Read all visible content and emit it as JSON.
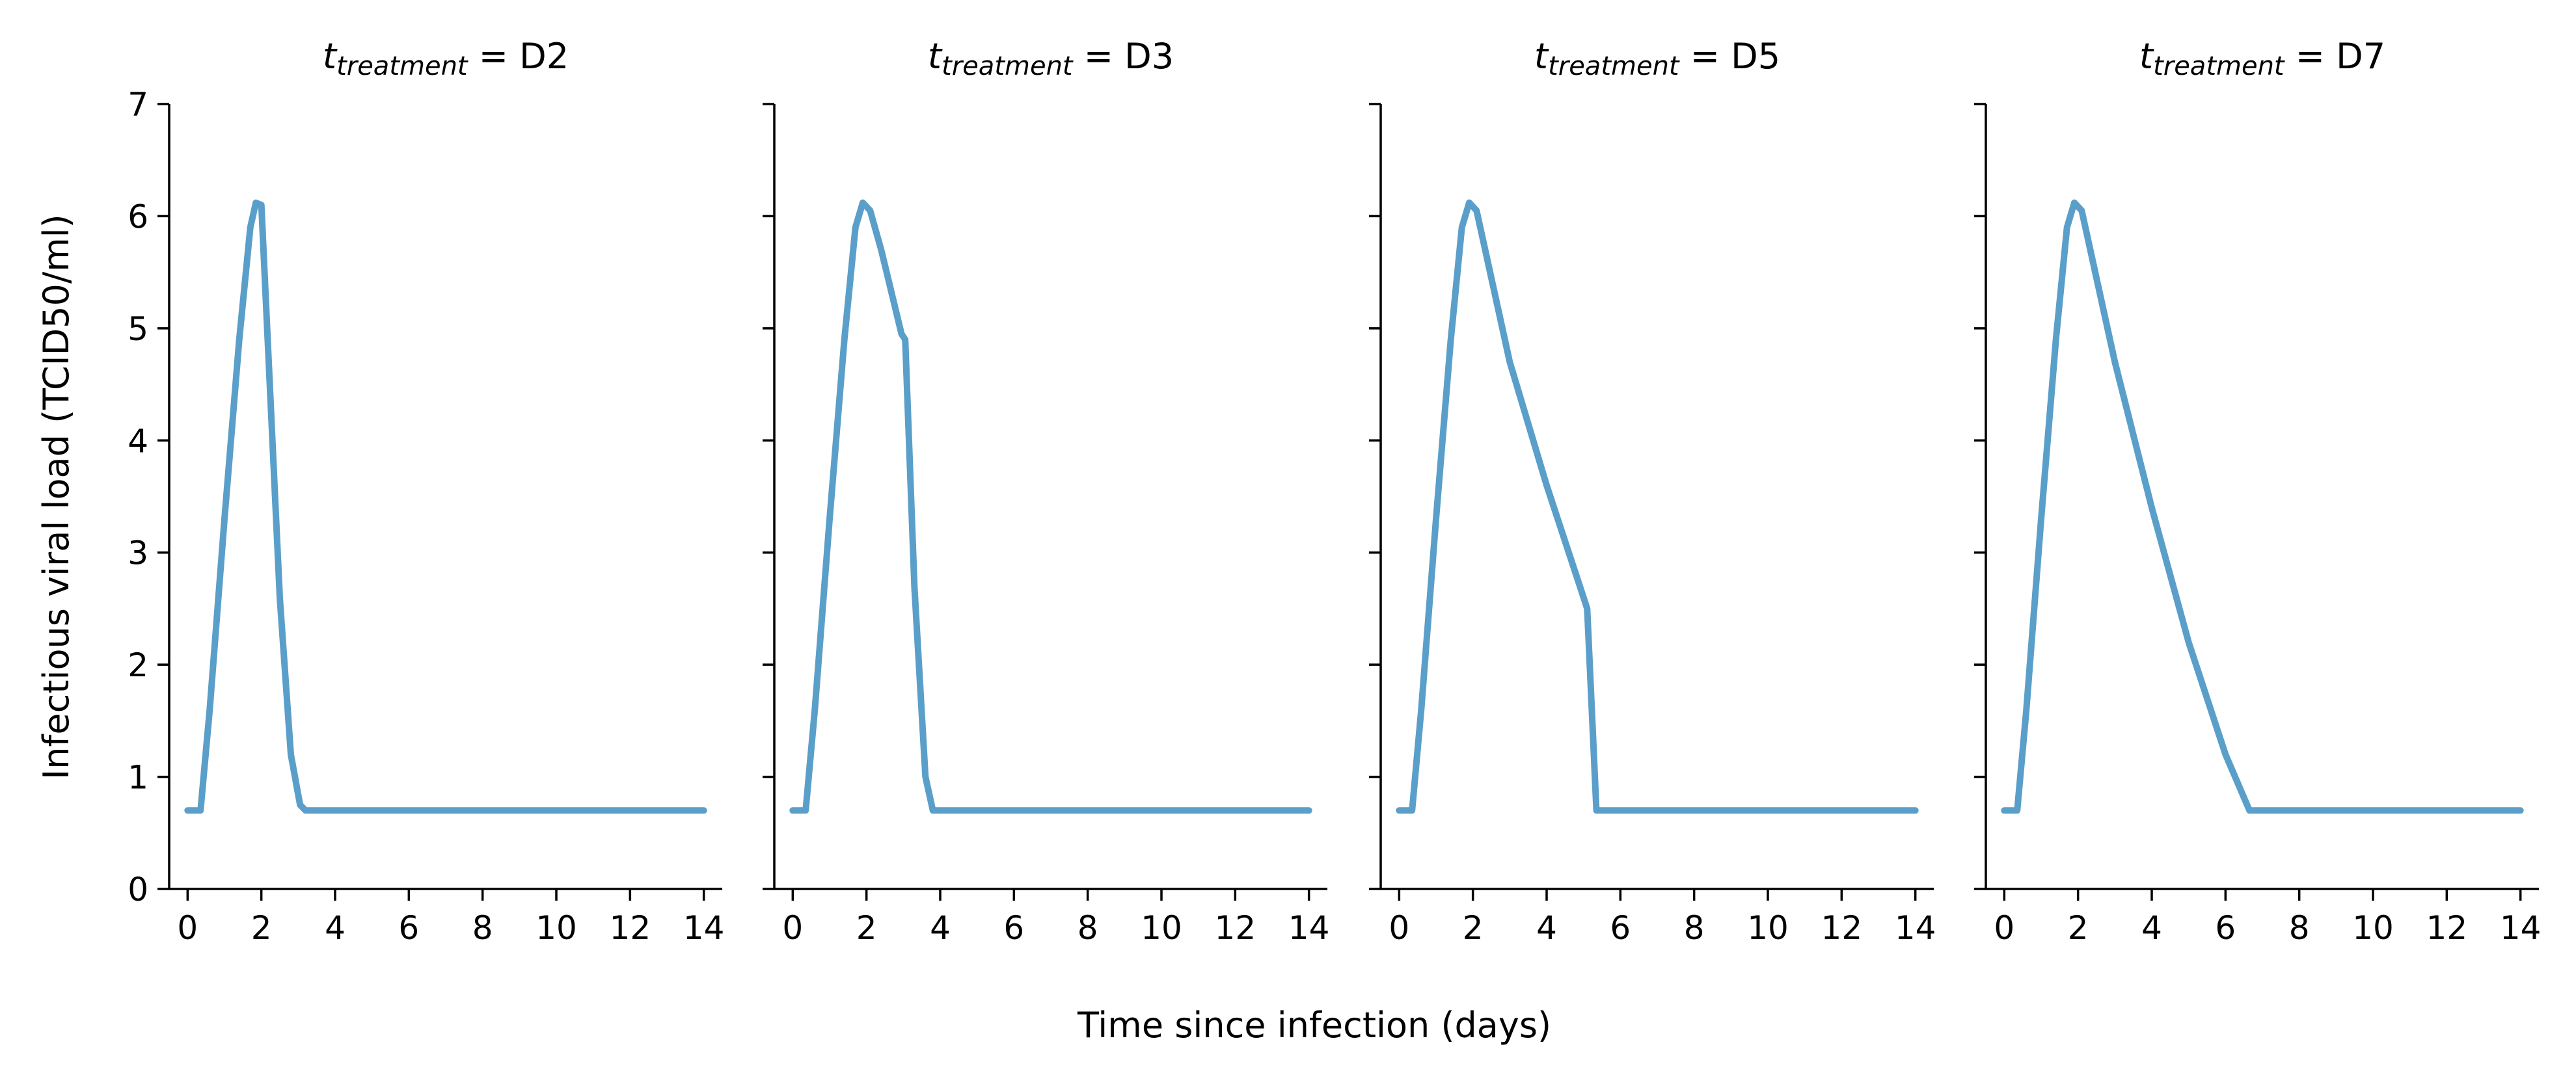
{
  "chart_data": {
    "type": "line",
    "xlabel": "Time since infection (days)",
    "ylabel": "Infectious viral load (TCID50/ml)",
    "xlim": [
      -0.5,
      14.5
    ],
    "ylim": [
      0,
      7
    ],
    "xticks": [
      "0",
      "2",
      "4",
      "6",
      "8",
      "10",
      "12",
      "14"
    ],
    "yticks": [
      "0",
      "1",
      "2",
      "3",
      "4",
      "5",
      "6",
      "7"
    ],
    "line_color": "#5a9fc9",
    "title_prefix": "t",
    "title_subscript": "treatment",
    "panels": [
      {
        "title_value": "D2",
        "series": [
          {
            "x": 0,
            "y": 0.7
          },
          {
            "x": 0.35,
            "y": 0.7
          },
          {
            "x": 0.6,
            "y": 1.6
          },
          {
            "x": 1.0,
            "y": 3.3
          },
          {
            "x": 1.4,
            "y": 4.9
          },
          {
            "x": 1.7,
            "y": 5.9
          },
          {
            "x": 1.85,
            "y": 6.12
          },
          {
            "x": 2.0,
            "y": 6.1
          },
          {
            "x": 2.2,
            "y": 4.7
          },
          {
            "x": 2.5,
            "y": 2.6
          },
          {
            "x": 2.8,
            "y": 1.2
          },
          {
            "x": 3.05,
            "y": 0.75
          },
          {
            "x": 3.2,
            "y": 0.7
          },
          {
            "x": 14,
            "y": 0.7
          }
        ]
      },
      {
        "title_value": "D3",
        "series": [
          {
            "x": 0,
            "y": 0.7
          },
          {
            "x": 0.35,
            "y": 0.7
          },
          {
            "x": 0.6,
            "y": 1.6
          },
          {
            "x": 1.0,
            "y": 3.3
          },
          {
            "x": 1.4,
            "y": 4.9
          },
          {
            "x": 1.7,
            "y": 5.9
          },
          {
            "x": 1.9,
            "y": 6.12
          },
          {
            "x": 2.1,
            "y": 6.05
          },
          {
            "x": 2.4,
            "y": 5.7
          },
          {
            "x": 2.95,
            "y": 4.95
          },
          {
            "x": 3.05,
            "y": 4.9
          },
          {
            "x": 3.3,
            "y": 2.7
          },
          {
            "x": 3.6,
            "y": 1.0
          },
          {
            "x": 3.8,
            "y": 0.7
          },
          {
            "x": 14,
            "y": 0.7
          }
        ]
      },
      {
        "title_value": "D5",
        "series": [
          {
            "x": 0,
            "y": 0.7
          },
          {
            "x": 0.35,
            "y": 0.7
          },
          {
            "x": 0.6,
            "y": 1.6
          },
          {
            "x": 1.0,
            "y": 3.3
          },
          {
            "x": 1.4,
            "y": 4.9
          },
          {
            "x": 1.7,
            "y": 5.9
          },
          {
            "x": 1.9,
            "y": 6.12
          },
          {
            "x": 2.1,
            "y": 6.05
          },
          {
            "x": 2.4,
            "y": 5.6
          },
          {
            "x": 3.0,
            "y": 4.7
          },
          {
            "x": 4.0,
            "y": 3.6
          },
          {
            "x": 5.0,
            "y": 2.6
          },
          {
            "x": 5.1,
            "y": 2.5
          },
          {
            "x": 5.35,
            "y": 0.7
          },
          {
            "x": 14,
            "y": 0.7
          }
        ]
      },
      {
        "title_value": "D7",
        "series": [
          {
            "x": 0,
            "y": 0.7
          },
          {
            "x": 0.35,
            "y": 0.7
          },
          {
            "x": 0.6,
            "y": 1.6
          },
          {
            "x": 1.0,
            "y": 3.3
          },
          {
            "x": 1.4,
            "y": 4.9
          },
          {
            "x": 1.7,
            "y": 5.9
          },
          {
            "x": 1.9,
            "y": 6.12
          },
          {
            "x": 2.1,
            "y": 6.05
          },
          {
            "x": 2.4,
            "y": 5.6
          },
          {
            "x": 3.0,
            "y": 4.7
          },
          {
            "x": 4.0,
            "y": 3.4
          },
          {
            "x": 5.0,
            "y": 2.2
          },
          {
            "x": 6.0,
            "y": 1.2
          },
          {
            "x": 6.65,
            "y": 0.7
          },
          {
            "x": 14,
            "y": 0.7
          }
        ]
      }
    ]
  }
}
